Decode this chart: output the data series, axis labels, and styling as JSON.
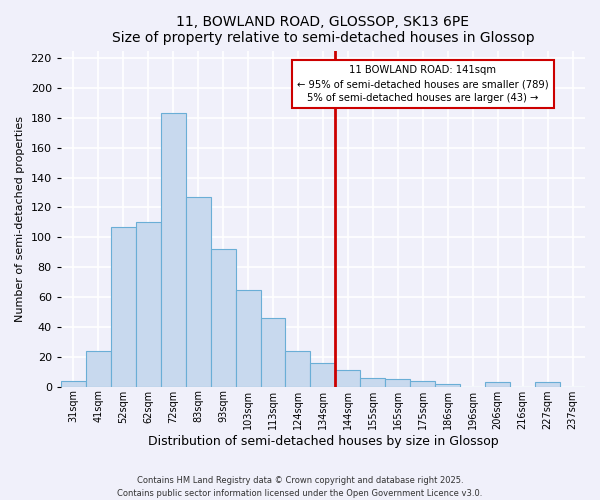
{
  "title": "11, BOWLAND ROAD, GLOSSOP, SK13 6PE",
  "subtitle": "Size of property relative to semi-detached houses in Glossop",
  "xlabel": "Distribution of semi-detached houses by size in Glossop",
  "ylabel": "Number of semi-detached properties",
  "bin_labels": [
    "31sqm",
    "41sqm",
    "52sqm",
    "62sqm",
    "72sqm",
    "83sqm",
    "93sqm",
    "103sqm",
    "113sqm",
    "124sqm",
    "134sqm",
    "144sqm",
    "155sqm",
    "165sqm",
    "175sqm",
    "186sqm",
    "196sqm",
    "206sqm",
    "216sqm",
    "227sqm",
    "237sqm"
  ],
  "bin_values": [
    4,
    24,
    107,
    110,
    183,
    127,
    92,
    65,
    46,
    24,
    16,
    11,
    6,
    5,
    4,
    2,
    0,
    3,
    0,
    3,
    0
  ],
  "bar_color": "#c8d9ee",
  "bar_edge_color": "#6aaed6",
  "marker_bin_index": 11,
  "marker_label_line1": "11 BOWLAND ROAD: 141sqm",
  "marker_label_line2": "← 95% of semi-detached houses are smaller (789)",
  "marker_label_line3": "5% of semi-detached houses are larger (43) →",
  "marker_color": "#cc0000",
  "ylim": [
    0,
    225
  ],
  "yticks": [
    0,
    20,
    40,
    60,
    80,
    100,
    120,
    140,
    160,
    180,
    200,
    220
  ],
  "background_color": "#f0f0fa",
  "grid_color": "#ffffff",
  "footnote1": "Contains HM Land Registry data © Crown copyright and database right 2025.",
  "footnote2": "Contains public sector information licensed under the Open Government Licence v3.0."
}
